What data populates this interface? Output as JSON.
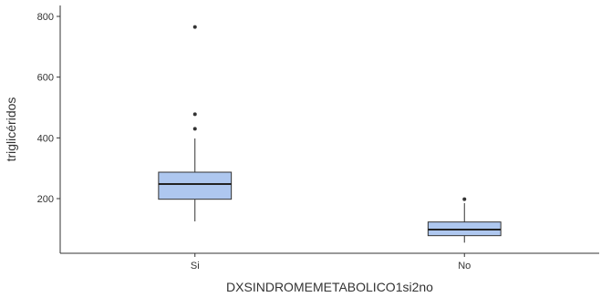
{
  "chart_data": {
    "type": "boxplot",
    "xlabel": "DXSINDROMEMETABOLICO1si2no",
    "ylabel": "triglicéridos",
    "categories": [
      "Si",
      "No"
    ],
    "y_ticks": [
      200,
      400,
      600,
      800
    ],
    "ylim": [
      20,
      810
    ],
    "grid": false,
    "box_color": "#aec7ef",
    "boxes": [
      {
        "category": "Si",
        "whisker_low": 125,
        "q1": 198,
        "median": 248,
        "q3": 287,
        "whisker_high": 398,
        "outliers": [
          430,
          478,
          765
        ]
      },
      {
        "category": "No",
        "whisker_low": 55,
        "q1": 78,
        "median": 98,
        "q3": 123,
        "whisker_high": 185,
        "outliers": [
          198
        ]
      }
    ]
  }
}
